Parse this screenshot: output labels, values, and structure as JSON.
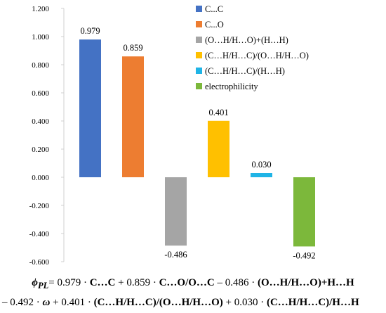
{
  "chart_data": {
    "type": "bar",
    "ylim": [
      -0.6,
      1.2
    ],
    "yticks": [
      "1.200",
      "1.000",
      "0.800",
      "0.600",
      "0.400",
      "0.200",
      "0.000",
      "-0.200",
      "-0.400",
      "-0.600"
    ],
    "grid": false,
    "legend_position": "top-right",
    "series": [
      {
        "name": "C...C",
        "value": 0.979,
        "label": "0.979",
        "color": "#4472C4"
      },
      {
        "name": "C...O",
        "value": 0.859,
        "label": "0.859",
        "color": "#ED7D31"
      },
      {
        "name": "(O…H/H…O)+(H…H)",
        "value": -0.486,
        "label": "-0.486",
        "color": "#A5A5A5"
      },
      {
        "name": "(C…H/H…C)/(O…H/H…O)",
        "value": 0.401,
        "label": "0.401",
        "color": "#FFC000"
      },
      {
        "name": "(C…H/H…C)/(H…H)",
        "value": 0.03,
        "label": "0.030",
        "color": "#1FB4E6"
      },
      {
        "name": "electrophilicity",
        "value": -0.492,
        "label": "-0.492",
        "color": "#7CB83B"
      }
    ]
  },
  "formula": {
    "phi": "ϕ",
    "phi_sub": "PL",
    "line1": [
      {
        "t": "= 0.979 · ",
        "s": "n"
      },
      {
        "t": "C…C",
        "s": "b"
      },
      {
        "t": " + 0.859 · ",
        "s": "n"
      },
      {
        "t": "C…O/O…C",
        "s": "b"
      },
      {
        "t": " – 0.486 · ",
        "s": "n"
      },
      {
        "t": "(O…H/H…O)+H…H",
        "s": "b"
      }
    ],
    "line2": [
      {
        "t": "– 0.492 · ",
        "s": "n"
      },
      {
        "t": "ω",
        "s": "bi"
      },
      {
        "t": "  +  0.401 · ",
        "s": "n"
      },
      {
        "t": "(C…H/H…C)/(O…H/H…O)",
        "s": "b"
      },
      {
        "t": " + 0.030 · ",
        "s": "n"
      },
      {
        "t": "(C…H/H…C)/H…H",
        "s": "b"
      }
    ]
  }
}
